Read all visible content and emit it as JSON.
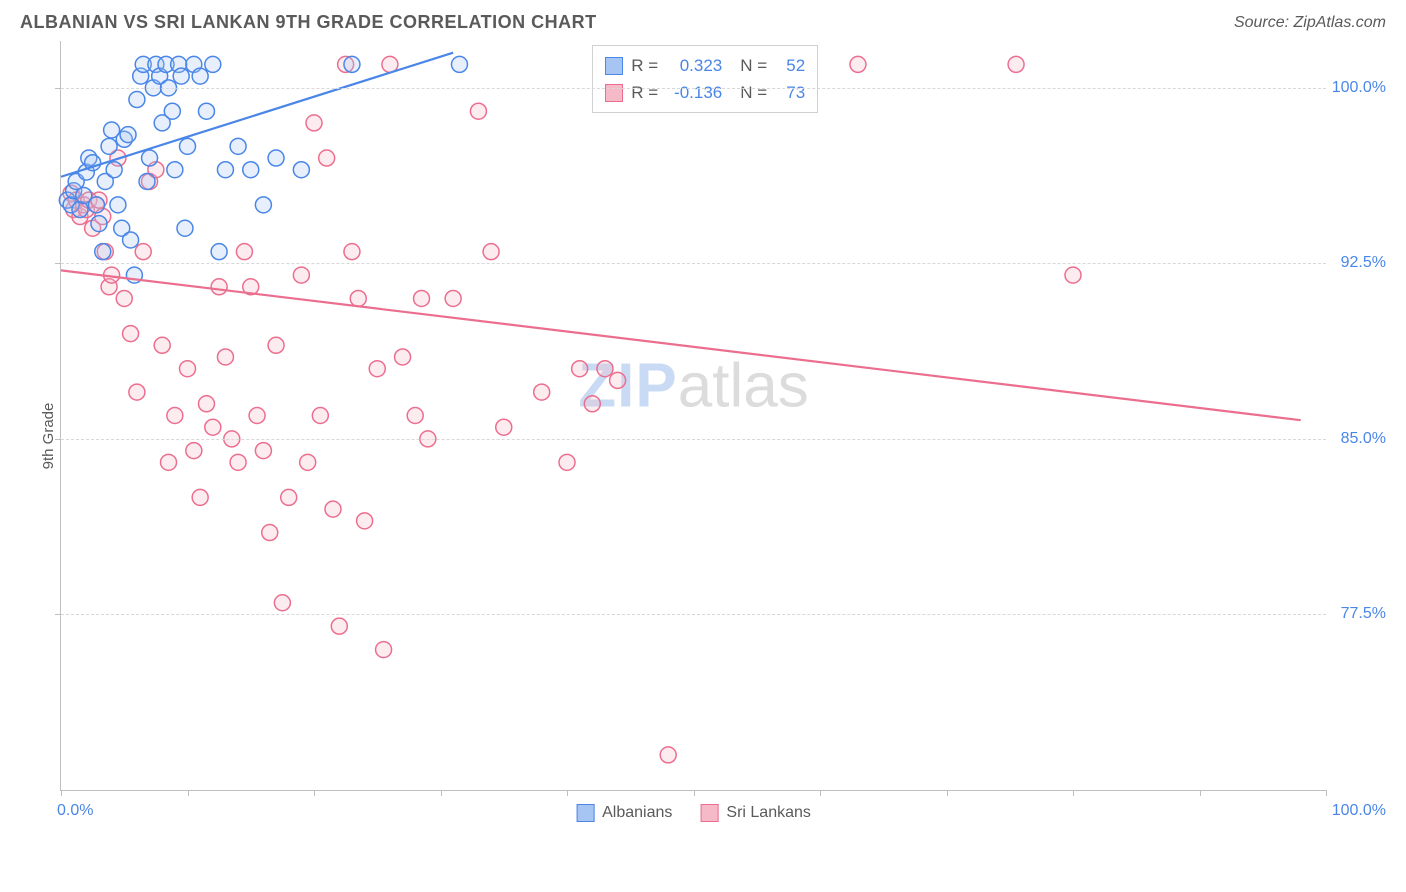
{
  "header": {
    "title": "ALBANIAN VS SRI LANKAN 9TH GRADE CORRELATION CHART",
    "source": "Source: ZipAtlas.com"
  },
  "chart": {
    "type": "scatter",
    "y_axis_title": "9th Grade",
    "xlim": [
      0,
      100
    ],
    "ylim": [
      70,
      102
    ],
    "x_ticks": [
      0,
      10,
      20,
      30,
      40,
      50,
      60,
      70,
      80,
      90,
      100
    ],
    "y_grid": [
      {
        "value": 100.0,
        "label": "100.0%"
      },
      {
        "value": 92.5,
        "label": "92.5%"
      },
      {
        "value": 85.0,
        "label": "85.0%"
      },
      {
        "value": 77.5,
        "label": "77.5%"
      }
    ],
    "x_labels": {
      "start": "0.0%",
      "end": "100.0%"
    },
    "background_color": "#ffffff",
    "grid_color": "#d8d8d8",
    "axis_color": "#bfbfbf",
    "marker_radius": 8,
    "marker_stroke_width": 1.5,
    "marker_fill_opacity": 0.28,
    "line_width": 2.2,
    "series": [
      {
        "name": "Albanians",
        "color_stroke": "#4a86e8",
        "color_fill": "#a7c5f2",
        "R": "0.323",
        "N": "52",
        "trend": {
          "x1": 0,
          "y1": 96.2,
          "x2": 31,
          "y2": 101.5
        },
        "points": [
          [
            0.5,
            95.2
          ],
          [
            0.8,
            95.0
          ],
          [
            1.0,
            95.6
          ],
          [
            1.2,
            96.0
          ],
          [
            1.5,
            94.8
          ],
          [
            1.8,
            95.4
          ],
          [
            2.0,
            96.4
          ],
          [
            2.2,
            97.0
          ],
          [
            2.5,
            96.8
          ],
          [
            2.8,
            95.0
          ],
          [
            3.0,
            94.2
          ],
          [
            3.3,
            93.0
          ],
          [
            3.5,
            96.0
          ],
          [
            3.8,
            97.5
          ],
          [
            4.0,
            98.2
          ],
          [
            4.2,
            96.5
          ],
          [
            4.5,
            95.0
          ],
          [
            4.8,
            94.0
          ],
          [
            5.0,
            97.8
          ],
          [
            5.3,
            98.0
          ],
          [
            5.5,
            93.5
          ],
          [
            5.8,
            92.0
          ],
          [
            6.0,
            99.5
          ],
          [
            6.3,
            100.5
          ],
          [
            6.5,
            101.0
          ],
          [
            6.8,
            96.0
          ],
          [
            7.0,
            97.0
          ],
          [
            7.3,
            100.0
          ],
          [
            7.5,
            101.0
          ],
          [
            7.8,
            100.5
          ],
          [
            8.0,
            98.5
          ],
          [
            8.3,
            101.0
          ],
          [
            8.5,
            100.0
          ],
          [
            8.8,
            99.0
          ],
          [
            9.0,
            96.5
          ],
          [
            9.3,
            101.0
          ],
          [
            9.5,
            100.5
          ],
          [
            9.8,
            94.0
          ],
          [
            10.0,
            97.5
          ],
          [
            10.5,
            101.0
          ],
          [
            11.0,
            100.5
          ],
          [
            11.5,
            99.0
          ],
          [
            12.0,
            101.0
          ],
          [
            12.5,
            93.0
          ],
          [
            13.0,
            96.5
          ],
          [
            14.0,
            97.5
          ],
          [
            15.0,
            96.5
          ],
          [
            16.0,
            95.0
          ],
          [
            17.0,
            97.0
          ],
          [
            19.0,
            96.5
          ],
          [
            23.0,
            101.0
          ],
          [
            31.5,
            101.0
          ]
        ]
      },
      {
        "name": "Sri Lankans",
        "color_stroke": "#ec6e8e",
        "color_fill": "#f5b9c8",
        "R": "-0.136",
        "N": "73",
        "trend": {
          "x1": 0,
          "y1": 92.2,
          "x2": 98,
          "y2": 85.8
        },
        "points": [
          [
            0.8,
            95.5
          ],
          [
            1.0,
            94.8
          ],
          [
            1.2,
            95.2
          ],
          [
            1.5,
            94.5
          ],
          [
            1.8,
            95.0
          ],
          [
            2.0,
            94.8
          ],
          [
            2.2,
            95.2
          ],
          [
            2.5,
            94.0
          ],
          [
            2.8,
            95.0
          ],
          [
            3.0,
            95.2
          ],
          [
            3.3,
            94.5
          ],
          [
            3.5,
            93.0
          ],
          [
            3.8,
            91.5
          ],
          [
            4.0,
            92.0
          ],
          [
            4.5,
            97.0
          ],
          [
            5.0,
            91.0
          ],
          [
            5.5,
            89.5
          ],
          [
            6.0,
            87.0
          ],
          [
            6.5,
            93.0
          ],
          [
            7.0,
            96.0
          ],
          [
            7.5,
            96.5
          ],
          [
            8.0,
            89.0
          ],
          [
            8.5,
            84.0
          ],
          [
            9.0,
            86.0
          ],
          [
            10.0,
            88.0
          ],
          [
            10.5,
            84.5
          ],
          [
            11.0,
            82.5
          ],
          [
            11.5,
            86.5
          ],
          [
            12.0,
            85.5
          ],
          [
            12.5,
            91.5
          ],
          [
            13.0,
            88.5
          ],
          [
            13.5,
            85.0
          ],
          [
            14.0,
            84.0
          ],
          [
            14.5,
            93.0
          ],
          [
            15.0,
            91.5
          ],
          [
            15.5,
            86.0
          ],
          [
            16.0,
            84.5
          ],
          [
            16.5,
            81.0
          ],
          [
            17.0,
            89.0
          ],
          [
            17.5,
            78.0
          ],
          [
            18.0,
            82.5
          ],
          [
            19.0,
            92.0
          ],
          [
            19.5,
            84.0
          ],
          [
            20.0,
            98.5
          ],
          [
            20.5,
            86.0
          ],
          [
            21.0,
            97.0
          ],
          [
            21.5,
            82.0
          ],
          [
            22.0,
            77.0
          ],
          [
            22.5,
            101.0
          ],
          [
            23.0,
            93.0
          ],
          [
            23.5,
            91.0
          ],
          [
            24.0,
            81.5
          ],
          [
            25.0,
            88.0
          ],
          [
            25.5,
            76.0
          ],
          [
            26.0,
            101.0
          ],
          [
            27.0,
            88.5
          ],
          [
            28.0,
            86.0
          ],
          [
            28.5,
            91.0
          ],
          [
            29.0,
            85.0
          ],
          [
            31.0,
            91.0
          ],
          [
            33.0,
            99.0
          ],
          [
            34.0,
            93.0
          ],
          [
            35.0,
            85.5
          ],
          [
            38.0,
            87.0
          ],
          [
            40.0,
            84.0
          ],
          [
            41.0,
            88.0
          ],
          [
            42.0,
            86.5
          ],
          [
            43.0,
            88.0
          ],
          [
            44.0,
            87.5
          ],
          [
            48.0,
            71.5
          ],
          [
            63.0,
            101.0
          ],
          [
            75.5,
            101.0
          ],
          [
            80.0,
            92.0
          ]
        ]
      }
    ]
  },
  "watermark": {
    "part1": "ZIP",
    "part2": "atlas"
  }
}
